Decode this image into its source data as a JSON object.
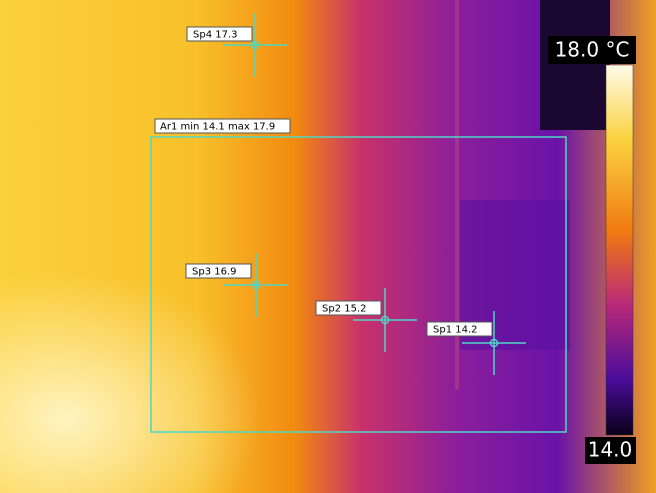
{
  "spots": [
    {
      "label": "Sp4 17.3"
    },
    {
      "label": "Sp3 16.9"
    },
    {
      "label": "Sp2 15.2"
    },
    {
      "label": "Sp1 14.2"
    }
  ],
  "area": {
    "label": "Ar1 min 14.1 max 17.9"
  },
  "scale": {
    "max_label": "18.0 °C",
    "min_label": "14.0"
  }
}
